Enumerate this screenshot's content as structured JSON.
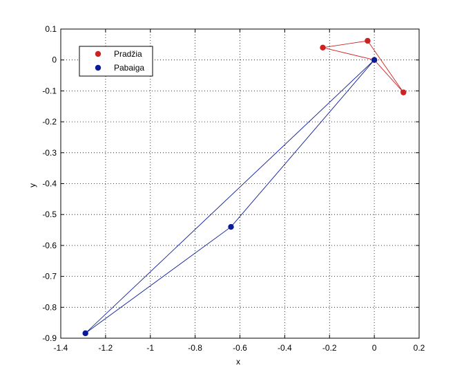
{
  "chart_data": {
    "type": "line",
    "title": "",
    "xlabel": "x",
    "ylabel": "y",
    "xlim": [
      -1.4,
      0.2
    ],
    "ylim": [
      -0.9,
      0.1
    ],
    "xticks": [
      -1.4,
      -1.2,
      -1,
      -0.8,
      -0.6,
      -0.4,
      -0.2,
      0,
      0.2
    ],
    "yticks": [
      0.1,
      0,
      -0.1,
      -0.2,
      -0.3,
      -0.4,
      -0.5,
      -0.6,
      -0.7,
      -0.8,
      -0.9
    ],
    "xtick_labels": [
      "-1.4",
      "-1.2",
      "-1",
      "-0.8",
      "-0.6",
      "-0.4",
      "-0.2",
      "0",
      "0.2"
    ],
    "ytick_labels": [
      "0.1",
      "0",
      "-0.1",
      "-0.2",
      "-0.3",
      "-0.4",
      "-0.5",
      "-0.6",
      "-0.7",
      "-0.8",
      "-0.9"
    ],
    "grid": true,
    "legend_position": "top-left",
    "series": [
      {
        "name": "Pradžia",
        "color": "#cc2222",
        "closed": true,
        "points": [
          [
            -0.23,
            0.04
          ],
          [
            -0.03,
            0.062
          ],
          [
            0.13,
            -0.105
          ],
          [
            0,
            0
          ]
        ]
      },
      {
        "name": "Pabaiga",
        "color": "#0a1a99",
        "closed": true,
        "points": [
          [
            0,
            0
          ],
          [
            -0.64,
            -0.54
          ],
          [
            -1.29,
            -0.884
          ]
        ]
      }
    ]
  }
}
